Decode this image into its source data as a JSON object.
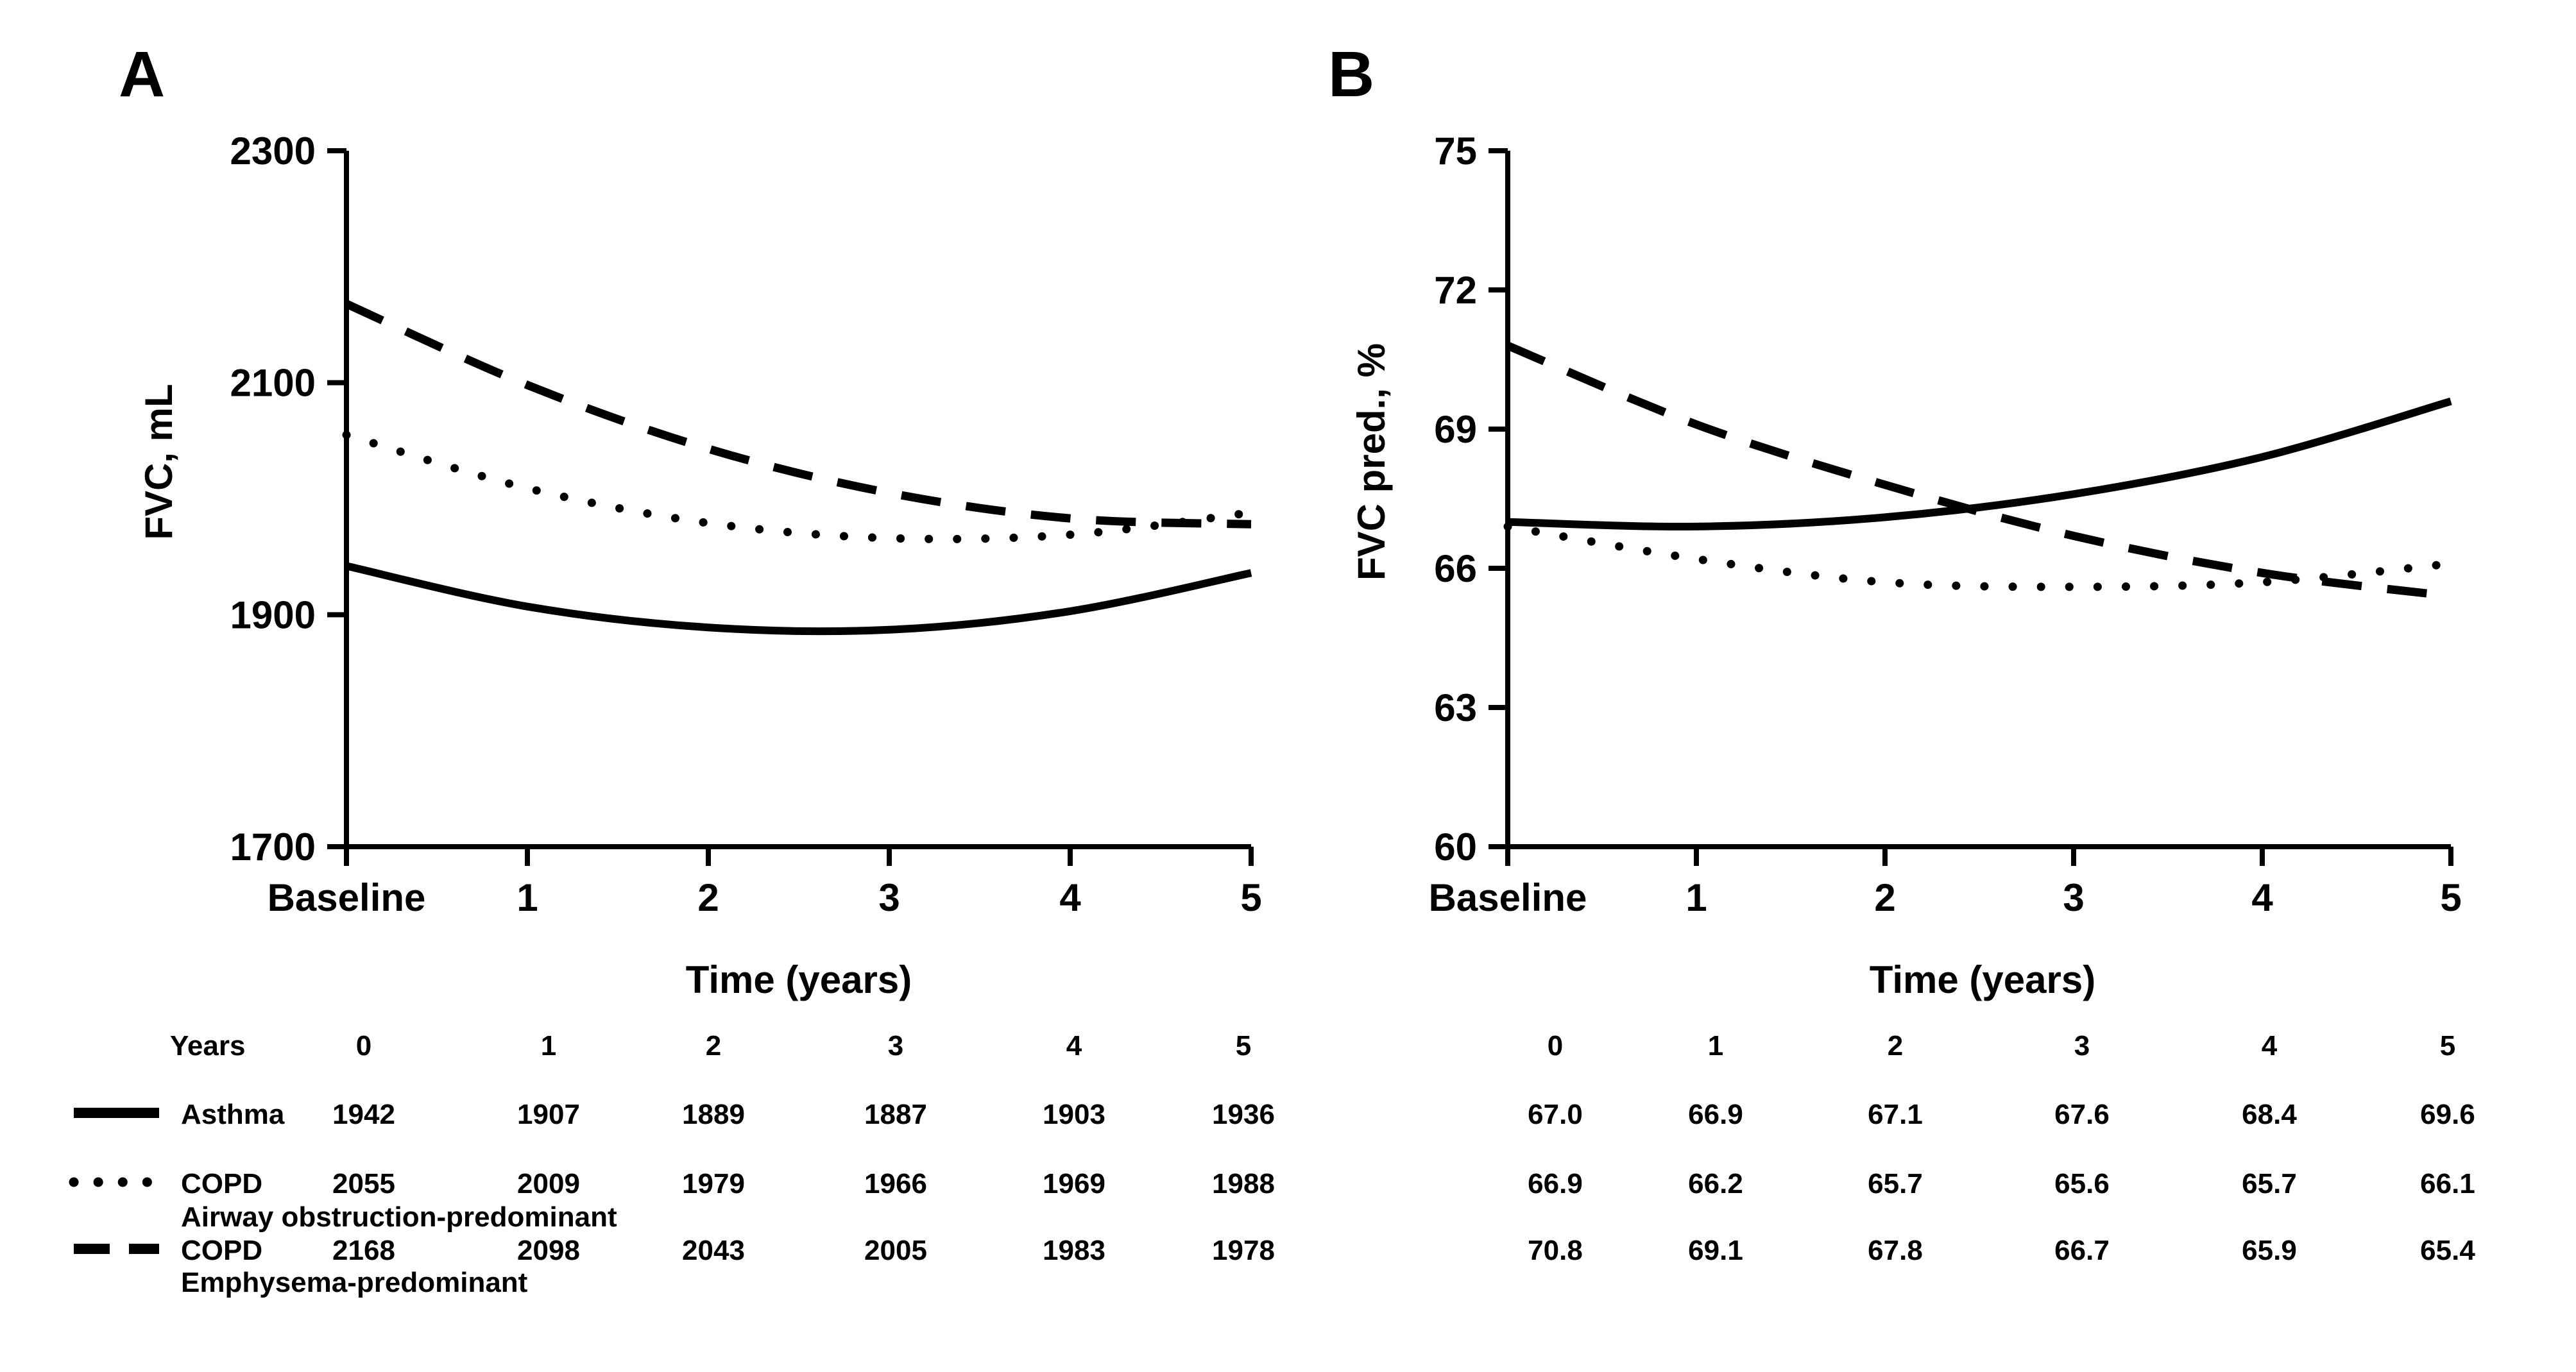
{
  "figure": {
    "panel_a_label": "A",
    "panel_b_label": "B"
  },
  "colors": {
    "ink": "#000000",
    "background": "#ffffff"
  },
  "chart_data": [
    {
      "type": "line",
      "panel": "A",
      "title": "",
      "xlabel": "Time (years)",
      "ylabel": "FVC, mL",
      "x_categories": [
        "Baseline",
        "1",
        "2",
        "3",
        "4",
        "5"
      ],
      "x": [
        0,
        1,
        2,
        3,
        4,
        5
      ],
      "ylim": [
        1700,
        2300
      ],
      "yticks": [
        2300,
        2100,
        1900,
        1700
      ],
      "grid": false,
      "legend_position": "bottom-table",
      "series": [
        {
          "name": "Asthma",
          "style": "solid",
          "values": [
            1942,
            1907,
            1889,
            1887,
            1903,
            1936
          ]
        },
        {
          "name": "COPD Airway obstruction-predominant",
          "style": "dotted",
          "values": [
            2055,
            2009,
            1979,
            1966,
            1969,
            1988
          ]
        },
        {
          "name": "COPD Emphysema-predominant",
          "style": "dashed",
          "values": [
            2168,
            2098,
            2043,
            2005,
            1983,
            1978
          ]
        }
      ]
    },
    {
      "type": "line",
      "panel": "B",
      "title": "",
      "xlabel": "Time (years)",
      "ylabel": "FVC pred., %",
      "x_categories": [
        "Baseline",
        "1",
        "2",
        "3",
        "4",
        "5"
      ],
      "x": [
        0,
        1,
        2,
        3,
        4,
        5
      ],
      "ylim": [
        60,
        75
      ],
      "yticks": [
        75,
        72,
        69,
        66,
        63,
        60
      ],
      "grid": false,
      "legend_position": "bottom-table",
      "series": [
        {
          "name": "Asthma",
          "style": "solid",
          "values": [
            67.0,
            66.9,
            67.1,
            67.6,
            68.4,
            69.6
          ]
        },
        {
          "name": "COPD Airway obstruction-predominant",
          "style": "dotted",
          "values": [
            66.9,
            66.2,
            65.7,
            65.6,
            65.7,
            66.1
          ]
        },
        {
          "name": "COPD Emphysema-predominant",
          "style": "dashed",
          "values": [
            70.8,
            69.1,
            67.8,
            66.7,
            65.9,
            65.4
          ]
        }
      ]
    }
  ],
  "table": {
    "years_label": "Years",
    "year_columns": [
      "0",
      "1",
      "2",
      "3",
      "4",
      "5"
    ],
    "rows": [
      {
        "name": "Asthma",
        "subtitle": "",
        "style": "solid",
        "panel_a_values": [
          "1942",
          "1907",
          "1889",
          "1887",
          "1903",
          "1936"
        ],
        "panel_b_values": [
          "67.0",
          "66.9",
          "67.1",
          "67.6",
          "68.4",
          "69.6"
        ]
      },
      {
        "name": "COPD",
        "subtitle": "Airway obstruction-predominant",
        "style": "dotted",
        "panel_a_values": [
          "2055",
          "2009",
          "1979",
          "1966",
          "1969",
          "1988"
        ],
        "panel_b_values": [
          "66.9",
          "66.2",
          "65.7",
          "65.6",
          "65.7",
          "66.1"
        ]
      },
      {
        "name": "COPD",
        "subtitle": "Emphysema-predominant",
        "style": "dashed",
        "panel_a_values": [
          "2168",
          "2098",
          "2043",
          "2005",
          "1983",
          "1978"
        ],
        "panel_b_values": [
          "70.8",
          "69.1",
          "67.8",
          "66.7",
          "65.9",
          "65.4"
        ]
      }
    ]
  }
}
